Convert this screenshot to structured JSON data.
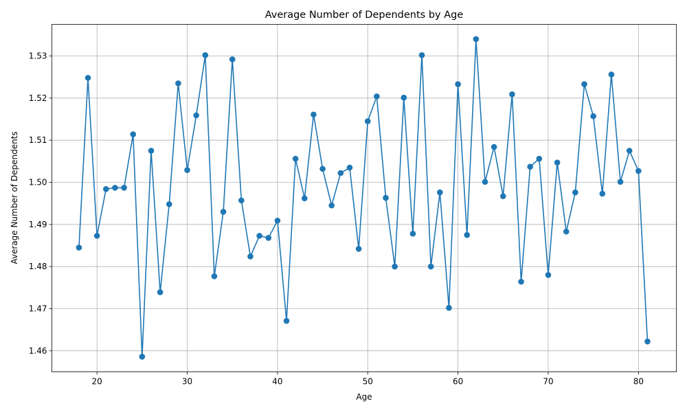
{
  "chart_data": {
    "type": "line",
    "title": "Average Number of Dependents by Age",
    "xlabel": "Age",
    "ylabel": "Average Number of Dependents",
    "xlim": [
      15,
      84.2
    ],
    "ylim": [
      1.455,
      1.5375
    ],
    "xticks": [
      20,
      30,
      40,
      50,
      60,
      70,
      80
    ],
    "yticks": [
      1.46,
      1.47,
      1.48,
      1.49,
      1.5,
      1.51,
      1.52,
      1.53
    ],
    "ytick_labels": [
      "1.46",
      "1.47",
      "1.48",
      "1.49",
      "1.50",
      "1.51",
      "1.52",
      "1.53"
    ],
    "grid": true,
    "marker": "circle",
    "color": "#1f77b4",
    "series": [
      {
        "x": [
          18,
          19,
          20,
          21,
          22,
          23,
          24,
          25,
          26,
          27,
          28,
          29,
          30,
          31,
          32,
          33,
          34,
          35,
          36,
          37,
          38,
          39,
          40,
          41,
          42,
          43,
          44,
          45,
          46,
          47,
          48,
          49,
          50,
          51,
          52,
          53,
          54,
          55,
          56,
          57,
          58,
          59,
          60,
          61,
          62,
          63,
          64,
          65,
          66,
          67,
          68,
          69,
          70,
          71,
          72,
          73,
          74,
          75,
          76,
          77,
          78,
          79,
          80,
          81
        ],
        "values": [
          1.4845,
          1.5248,
          1.4873,
          1.4984,
          1.4987,
          1.4987,
          1.5114,
          1.4586,
          1.5075,
          1.4739,
          1.4948,
          1.5235,
          1.5029,
          1.5159,
          1.5302,
          1.4777,
          1.493,
          1.5292,
          1.4957,
          1.4824,
          1.4873,
          1.4868,
          1.4909,
          1.4671,
          1.5056,
          1.4962,
          1.5161,
          1.5032,
          1.4945,
          1.5022,
          1.5035,
          1.4842,
          1.5145,
          1.5204,
          1.4963,
          1.48,
          1.5201,
          1.4878,
          1.5302,
          1.48,
          1.4976,
          1.4702,
          1.5233,
          1.4875,
          1.534,
          1.5001,
          1.5084,
          1.4967,
          1.5209,
          1.4764,
          1.5037,
          1.5056,
          1.478,
          1.5047,
          1.4883,
          1.4976,
          1.5233,
          1.5157,
          1.4973,
          1.5256,
          1.5001,
          1.5075,
          1.5027,
          1.4622
        ]
      }
    ]
  }
}
